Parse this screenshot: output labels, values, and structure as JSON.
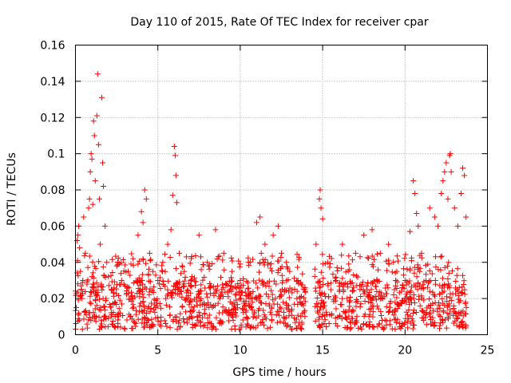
{
  "chart_data": {
    "type": "scatter",
    "title": "Day 110 of 2015, Rate Of TEC Index for receiver cpar",
    "xlabel": "GPS time / hours",
    "ylabel": "ROTI / TECUs",
    "xlim": [
      0,
      25
    ],
    "ylim": [
      0,
      0.16
    ],
    "xticks": [
      0,
      5,
      10,
      15,
      20,
      25
    ],
    "yticks": [
      0,
      0.02,
      0.04,
      0.06,
      0.08,
      0.1,
      0.12,
      0.14,
      0.16
    ],
    "xtick_labels": [
      "0",
      "5",
      "10",
      "15",
      "20",
      "25"
    ],
    "ytick_labels": [
      "0",
      "0.02",
      "0.04",
      "0.06",
      "0.08",
      "0.1",
      "0.12",
      "0.14",
      "0.16"
    ],
    "grid": true,
    "marker": "+",
    "color": "#ff0000",
    "series": [
      {
        "name": "ROTI",
        "points": [
          [
            0.05,
            0.015
          ],
          [
            0.1,
            0.052
          ],
          [
            0.15,
            0.055
          ],
          [
            0.2,
            0.06
          ],
          [
            0.25,
            0.048
          ],
          [
            0.3,
            0.035
          ],
          [
            0.35,
            0.025
          ],
          [
            0.4,
            0.02
          ],
          [
            0.45,
            0.03
          ],
          [
            0.5,
            0.065
          ],
          [
            0.6,
            0.045
          ],
          [
            0.7,
            0.028
          ],
          [
            0.8,
            0.07
          ],
          [
            0.85,
            0.075
          ],
          [
            0.9,
            0.09
          ],
          [
            0.95,
            0.1
          ],
          [
            1.0,
            0.097
          ],
          [
            1.05,
            0.072
          ],
          [
            1.1,
            0.118
          ],
          [
            1.15,
            0.11
          ],
          [
            1.2,
            0.085
          ],
          [
            1.3,
            0.121
          ],
          [
            1.35,
            0.144
          ],
          [
            1.4,
            0.105
          ],
          [
            1.45,
            0.075
          ],
          [
            1.5,
            0.05
          ],
          [
            1.6,
            0.131
          ],
          [
            1.65,
            0.095
          ],
          [
            1.7,
            0.082
          ],
          [
            1.8,
            0.06
          ],
          [
            1.9,
            0.04
          ],
          [
            2.0,
            0.032
          ],
          [
            2.2,
            0.025
          ],
          [
            2.5,
            0.038
          ],
          [
            2.8,
            0.03
          ],
          [
            3.0,
            0.027
          ],
          [
            3.2,
            0.035
          ],
          [
            3.5,
            0.042
          ],
          [
            3.8,
            0.055
          ],
          [
            4.0,
            0.068
          ],
          [
            4.1,
            0.062
          ],
          [
            4.2,
            0.08
          ],
          [
            4.3,
            0.075
          ],
          [
            4.5,
            0.045
          ],
          [
            4.7,
            0.035
          ],
          [
            5.0,
            0.03
          ],
          [
            5.3,
            0.04
          ],
          [
            5.6,
            0.05
          ],
          [
            5.8,
            0.058
          ],
          [
            5.9,
            0.077
          ],
          [
            6.0,
            0.104
          ],
          [
            6.05,
            0.099
          ],
          [
            6.1,
            0.088
          ],
          [
            6.15,
            0.073
          ],
          [
            6.3,
            0.045
          ],
          [
            6.6,
            0.035
          ],
          [
            7.0,
            0.03
          ],
          [
            7.5,
            0.055
          ],
          [
            8.0,
            0.04
          ],
          [
            8.5,
            0.058
          ],
          [
            9.0,
            0.045
          ],
          [
            9.5,
            0.035
          ],
          [
            10.0,
            0.03
          ],
          [
            10.5,
            0.04
          ],
          [
            11.0,
            0.062
          ],
          [
            11.2,
            0.065
          ],
          [
            11.5,
            0.05
          ],
          [
            12.0,
            0.055
          ],
          [
            12.3,
            0.06
          ],
          [
            12.5,
            0.045
          ],
          [
            12.8,
            0.04
          ],
          [
            13.0,
            0.035
          ],
          [
            13.5,
            0.03
          ],
          [
            13.9,
            0.025
          ],
          [
            14.6,
            0.05
          ],
          [
            14.8,
            0.075
          ],
          [
            14.85,
            0.08
          ],
          [
            14.9,
            0.07
          ],
          [
            15.0,
            0.064
          ],
          [
            15.3,
            0.04
          ],
          [
            15.8,
            0.03
          ],
          [
            16.2,
            0.05
          ],
          [
            16.5,
            0.028
          ],
          [
            17.0,
            0.045
          ],
          [
            17.5,
            0.055
          ],
          [
            18.0,
            0.058
          ],
          [
            18.5,
            0.045
          ],
          [
            19.0,
            0.05
          ],
          [
            19.5,
            0.035
          ],
          [
            20.0,
            0.03
          ],
          [
            20.3,
            0.057
          ],
          [
            20.5,
            0.085
          ],
          [
            20.6,
            0.078
          ],
          [
            20.7,
            0.067
          ],
          [
            20.8,
            0.06
          ],
          [
            21.0,
            0.045
          ],
          [
            21.5,
            0.07
          ],
          [
            21.8,
            0.065
          ],
          [
            22.0,
            0.06
          ],
          [
            22.2,
            0.078
          ],
          [
            22.3,
            0.085
          ],
          [
            22.4,
            0.09
          ],
          [
            22.5,
            0.095
          ],
          [
            22.6,
            0.075
          ],
          [
            22.7,
            0.099
          ],
          [
            22.75,
            0.1
          ],
          [
            22.8,
            0.09
          ],
          [
            23.0,
            0.07
          ],
          [
            23.2,
            0.06
          ],
          [
            23.4,
            0.078
          ],
          [
            23.5,
            0.092
          ],
          [
            23.6,
            0.088
          ],
          [
            23.7,
            0.065
          ]
        ],
        "dense_band": {
          "x_ranges": [
            [
              0,
              13.95
            ],
            [
              14.5,
              23.75
            ]
          ],
          "y_min": 0.003,
          "y_typical_max": 0.03,
          "density": 1400
        }
      }
    ]
  }
}
